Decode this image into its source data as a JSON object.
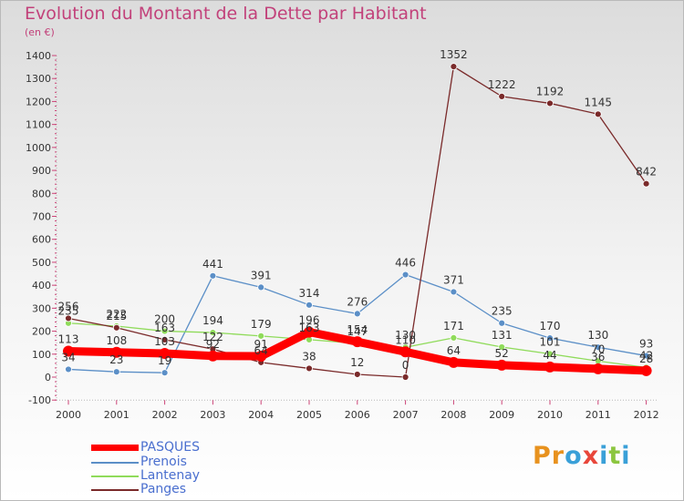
{
  "title": "Evolution du Montant de la Dette par Habitant",
  "subtitle": "(en €)",
  "logo_text": "Proxiti",
  "colors": {
    "title": "#c2417a",
    "axis_text": "#333333",
    "legend_text": "#4a6fcf",
    "PASQUES": "#ff0000",
    "Prenois": "#5b8fc7",
    "Lantenay": "#8fdb5a",
    "Panges": "#7a2a2a"
  },
  "chart_data": {
    "type": "line",
    "title": "Evolution du Montant de la Dette par Habitant",
    "subtitle": "(en €)",
    "ylim": [
      -100,
      1400
    ],
    "yticks": [
      -100,
      0,
      100,
      200,
      300,
      400,
      500,
      600,
      700,
      800,
      900,
      1000,
      1100,
      1200,
      1300,
      1400
    ],
    "grid": false,
    "legend_position": "bottom-left",
    "categories": [
      "2000",
      "2001",
      "2002",
      "2003",
      "2004",
      "2005",
      "2006",
      "2007",
      "2008",
      "2009",
      "2010",
      "2011",
      "2012"
    ],
    "series": [
      {
        "name": "PASQUES",
        "values": [
          113,
          108,
          103,
          92,
          91,
          196,
          154,
          110,
          64,
          52,
          44,
          36,
          28
        ]
      },
      {
        "name": "Prenois",
        "values": [
          34,
          23,
          19,
          441,
          391,
          314,
          276,
          446,
          371,
          235,
          170,
          130,
          93
        ]
      },
      {
        "name": "Lantenay",
        "values": [
          235,
          222,
          200,
          194,
          179,
          163,
          147,
          130,
          171,
          131,
          101,
          70,
          42
        ]
      },
      {
        "name": "Panges",
        "values": [
          256,
          215,
          163,
          122,
          64,
          38,
          12,
          0,
          1352,
          1222,
          1192,
          1145,
          842
        ]
      }
    ]
  }
}
